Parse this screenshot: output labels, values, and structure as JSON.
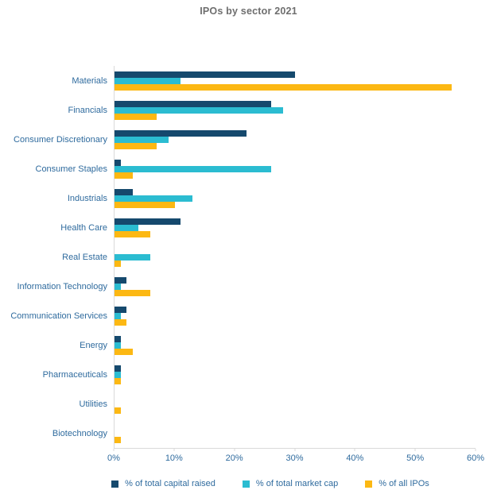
{
  "title": "IPOs by sector 2021",
  "colors": {
    "capital_raised": "#15496d",
    "market_cap": "#2bbcd1",
    "all_ipos": "#fcb813",
    "label_text": "#2f6b9e",
    "title_text": "#6e6e6e",
    "axis_line": "#d9d9d9"
  },
  "chart_data": {
    "type": "bar",
    "orientation": "horizontal",
    "title": "IPOs by sector 2021",
    "xlabel": "",
    "ylabel": "",
    "xlim": [
      0,
      60
    ],
    "x_ticks": [
      "0%",
      "10%",
      "20%",
      "30%",
      "40%",
      "50%",
      "60%"
    ],
    "grid": false,
    "legend_position": "bottom",
    "categories": [
      "Materials",
      "Financials",
      "Consumer Discretionary",
      "Consumer Staples",
      "Industrials",
      "Health Care",
      "Real Estate",
      "Information Technology",
      "Communication Services",
      "Energy",
      "Pharmaceuticals",
      "Utilities",
      "Biotechnology"
    ],
    "series": [
      {
        "name": "% of total capital raised",
        "color_key": "capital_raised",
        "values": [
          30,
          26,
          22,
          1,
          3,
          11,
          0,
          2,
          2,
          1,
          1,
          0,
          0
        ]
      },
      {
        "name": "% of total market cap",
        "color_key": "market_cap",
        "values": [
          11,
          28,
          9,
          26,
          13,
          4,
          6,
          1,
          1,
          1,
          1,
          0,
          0
        ]
      },
      {
        "name": "% of all IPOs",
        "color_key": "all_ipos",
        "values": [
          56,
          7,
          7,
          3,
          10,
          6,
          1,
          6,
          2,
          3,
          1,
          1,
          1
        ]
      }
    ]
  }
}
